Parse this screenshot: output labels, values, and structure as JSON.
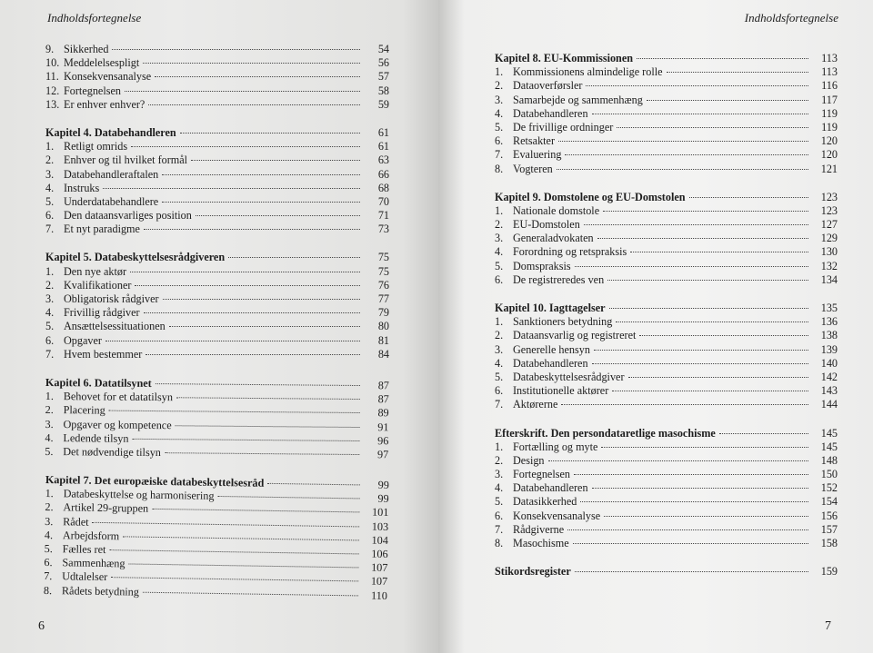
{
  "left_page": {
    "running_head": "Indholdsfortegnelse",
    "folio": "6",
    "sections": [
      {
        "heading": null,
        "items": [
          {
            "num": "9.",
            "title": "Sikkerhed",
            "page": "54"
          },
          {
            "num": "10.",
            "title": "Meddelelsespligt",
            "page": "56"
          },
          {
            "num": "11.",
            "title": "Konsekvensanalyse",
            "page": "57"
          },
          {
            "num": "12.",
            "title": "Fortegnelsen",
            "page": "58"
          },
          {
            "num": "13.",
            "title": "Er enhver enhver?",
            "page": "59"
          }
        ]
      },
      {
        "heading": {
          "title": "Kapitel 4. Databehandleren",
          "page": "61"
        },
        "items": [
          {
            "num": "1.",
            "title": "Retligt omrids",
            "page": "61"
          },
          {
            "num": "2.",
            "title": "Enhver og til hvilket formål",
            "page": "63"
          },
          {
            "num": "3.",
            "title": "Databehandleraftalen",
            "page": "66"
          },
          {
            "num": "4.",
            "title": "Instruks",
            "page": "68"
          },
          {
            "num": "5.",
            "title": "Underdatabehandlere",
            "page": "70"
          },
          {
            "num": "6.",
            "title": "Den dataansvarliges position",
            "page": "71"
          },
          {
            "num": "7.",
            "title": "Et nyt paradigme",
            "page": "73"
          }
        ]
      },
      {
        "heading": {
          "title": "Kapitel 5. Databeskyttelsesrådgiveren",
          "page": "75"
        },
        "items": [
          {
            "num": "1.",
            "title": "Den nye aktør",
            "page": "75"
          },
          {
            "num": "2.",
            "title": "Kvalifikationer",
            "page": "76"
          },
          {
            "num": "3.",
            "title": "Obligatorisk rådgiver",
            "page": "77"
          },
          {
            "num": "4.",
            "title": "Frivillig rådgiver",
            "page": "79"
          },
          {
            "num": "5.",
            "title": "Ansættelsessituationen",
            "page": "80"
          },
          {
            "num": "6.",
            "title": "Opgaver",
            "page": "81"
          },
          {
            "num": "7.",
            "title": "Hvem bestemmer",
            "page": "84"
          }
        ]
      },
      {
        "heading": {
          "title": "Kapitel 6. Datatilsynet",
          "page": "87"
        },
        "items": [
          {
            "num": "1.",
            "title": "Behovet for et datatilsyn",
            "page": "87"
          },
          {
            "num": "2.",
            "title": "Placering",
            "page": "89"
          },
          {
            "num": "3.",
            "title": "Opgaver og kompetence",
            "page": "91"
          },
          {
            "num": "4.",
            "title": "Ledende tilsyn",
            "page": "96"
          },
          {
            "num": "5.",
            "title": "Det nødvendige tilsyn",
            "page": "97"
          }
        ]
      },
      {
        "heading": {
          "title": "Kapitel 7. Det europæiske databeskyttelsesråd",
          "page": "99"
        },
        "items": [
          {
            "num": "1.",
            "title": "Databeskyttelse og harmonisering",
            "page": "99"
          },
          {
            "num": "2.",
            "title": "Artikel 29-gruppen",
            "page": "101"
          },
          {
            "num": "3.",
            "title": "Rådet",
            "page": "103"
          },
          {
            "num": "4.",
            "title": "Arbejdsform",
            "page": "104"
          },
          {
            "num": "5.",
            "title": "Fælles ret",
            "page": "106"
          },
          {
            "num": "6.",
            "title": "Sammenhæng",
            "page": "107"
          },
          {
            "num": "7.",
            "title": "Udtalelser",
            "page": "107"
          },
          {
            "num": "8.",
            "title": "Rådets betydning",
            "page": "110"
          }
        ]
      }
    ]
  },
  "right_page": {
    "running_head": "Indholdsfortegnelse",
    "folio": "7",
    "sections": [
      {
        "heading": {
          "title": "Kapitel 8. EU-Kommissionen",
          "page": "113"
        },
        "items": [
          {
            "num": "1.",
            "title": "Kommissionens almindelige rolle",
            "page": "113"
          },
          {
            "num": "2.",
            "title": "Dataoverførsler",
            "page": "116"
          },
          {
            "num": "3.",
            "title": "Samarbejde og sammenhæng",
            "page": "117"
          },
          {
            "num": "4.",
            "title": "Databehandleren",
            "page": "119"
          },
          {
            "num": "5.",
            "title": "De frivillige ordninger",
            "page": "119"
          },
          {
            "num": "6.",
            "title": "Retsakter",
            "page": "120"
          },
          {
            "num": "7.",
            "title": "Evaluering",
            "page": "120"
          },
          {
            "num": "8.",
            "title": "Vogteren",
            "page": "121"
          }
        ]
      },
      {
        "heading": {
          "title": "Kapitel 9. Domstolene og EU-Domstolen",
          "page": "123"
        },
        "items": [
          {
            "num": "1.",
            "title": "Nationale domstole",
            "page": "123"
          },
          {
            "num": "2.",
            "title": "EU-Domstolen",
            "page": "127"
          },
          {
            "num": "3.",
            "title": "Generaladvokaten",
            "page": "129"
          },
          {
            "num": "4.",
            "title": "Forordning og retspraksis",
            "page": "130"
          },
          {
            "num": "5.",
            "title": "Domspraksis",
            "page": "132"
          },
          {
            "num": "6.",
            "title": "De registreredes ven",
            "page": "134"
          }
        ]
      },
      {
        "heading": {
          "title": "Kapitel 10. Iagttagelser",
          "page": "135"
        },
        "items": [
          {
            "num": "1.",
            "title": "Sanktioners betydning",
            "page": "136"
          },
          {
            "num": "2.",
            "title": "Dataansvarlig og registreret",
            "page": "138"
          },
          {
            "num": "3.",
            "title": "Generelle hensyn",
            "page": "139"
          },
          {
            "num": "4.",
            "title": "Databehandleren",
            "page": "140"
          },
          {
            "num": "5.",
            "title": "Databeskyttelsesrådgiver",
            "page": "142"
          },
          {
            "num": "6.",
            "title": "Institutionelle aktører",
            "page": "143"
          },
          {
            "num": "7.",
            "title": "Aktørerne",
            "page": "144"
          }
        ]
      },
      {
        "heading": {
          "title": "Efterskrift. Den persondataretlige masochisme",
          "page": "145"
        },
        "items": [
          {
            "num": "1.",
            "title": "Fortælling og myte",
            "page": "145"
          },
          {
            "num": "2.",
            "title": "Design",
            "page": "148"
          },
          {
            "num": "3.",
            "title": "Fortegnelsen",
            "page": "150"
          },
          {
            "num": "4.",
            "title": "Databehandleren",
            "page": "152"
          },
          {
            "num": "5.",
            "title": "Datasikkerhed",
            "page": "154"
          },
          {
            "num": "6.",
            "title": "Konsekvensanalyse",
            "page": "156"
          },
          {
            "num": "7.",
            "title": "Rådgiverne",
            "page": "157"
          },
          {
            "num": "8.",
            "title": "Masochisme",
            "page": "158"
          }
        ]
      },
      {
        "heading": {
          "title": "Stikordsregister",
          "page": "159"
        },
        "items": []
      }
    ]
  }
}
